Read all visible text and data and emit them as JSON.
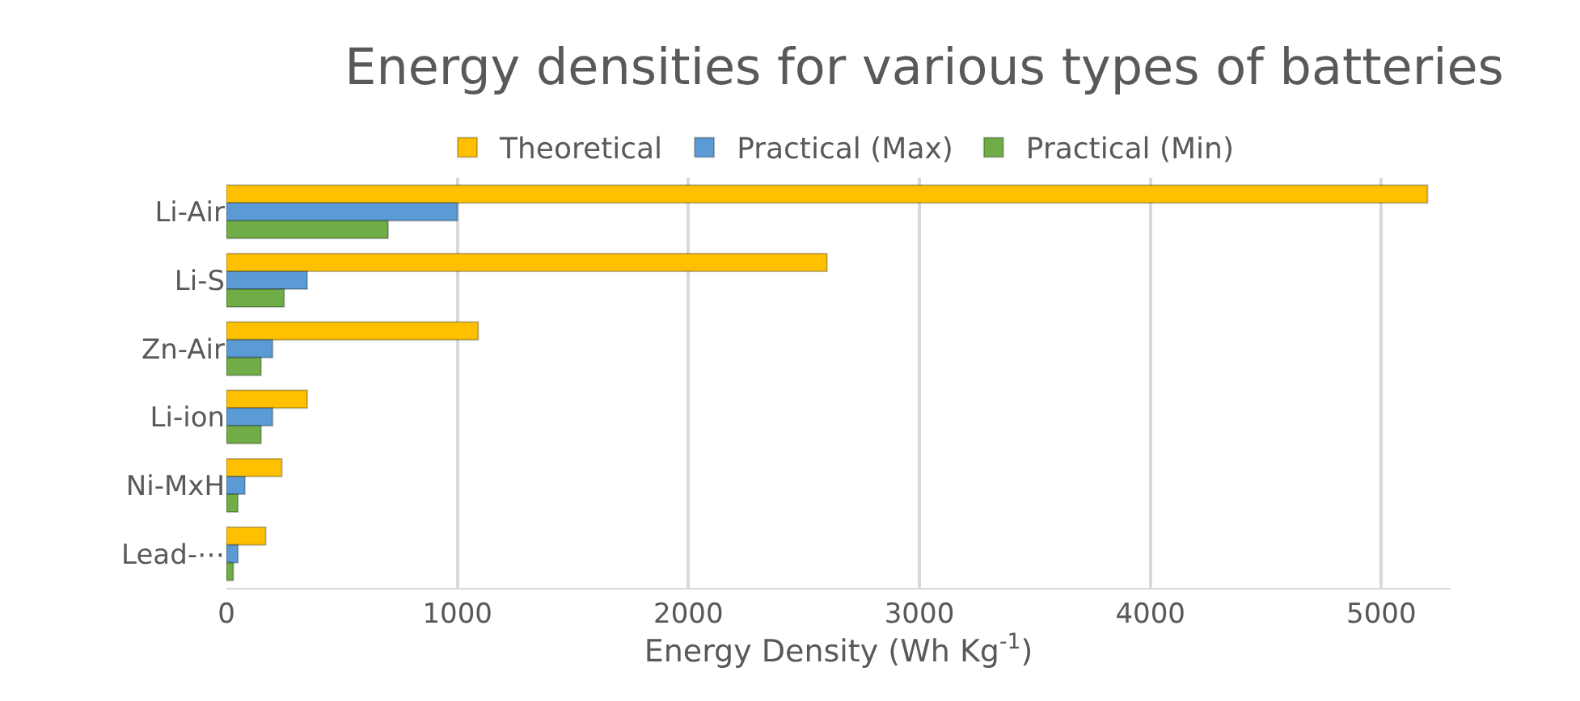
{
  "chart_data": {
    "type": "bar",
    "orientation": "horizontal",
    "title": "Energy densities for various types of batteries",
    "xlabel": "Energy Density (Wh Kg$^{-1}$)",
    "categories": [
      "Li-Air",
      "Li-S",
      "Zn-Air",
      "Li-ion",
      "Ni-MxH",
      "Lead-⋯"
    ],
    "series": [
      {
        "name": "Theoretical",
        "color": "#ffc000",
        "values": [
          5200,
          2600,
          1090,
          350,
          240,
          170
        ]
      },
      {
        "name": "Practical (Max)",
        "color": "#5b9bd5",
        "values": [
          1000,
          350,
          200,
          200,
          80,
          50
        ]
      },
      {
        "name": "Practical (Min)",
        "color": "#70ad47",
        "values": [
          700,
          250,
          150,
          150,
          50,
          30
        ]
      }
    ],
    "xlim": [
      0,
      5300
    ],
    "xticks": [
      0,
      1000,
      2000,
      3000,
      4000,
      5000
    ],
    "grid": "x",
    "legend": "top"
  }
}
